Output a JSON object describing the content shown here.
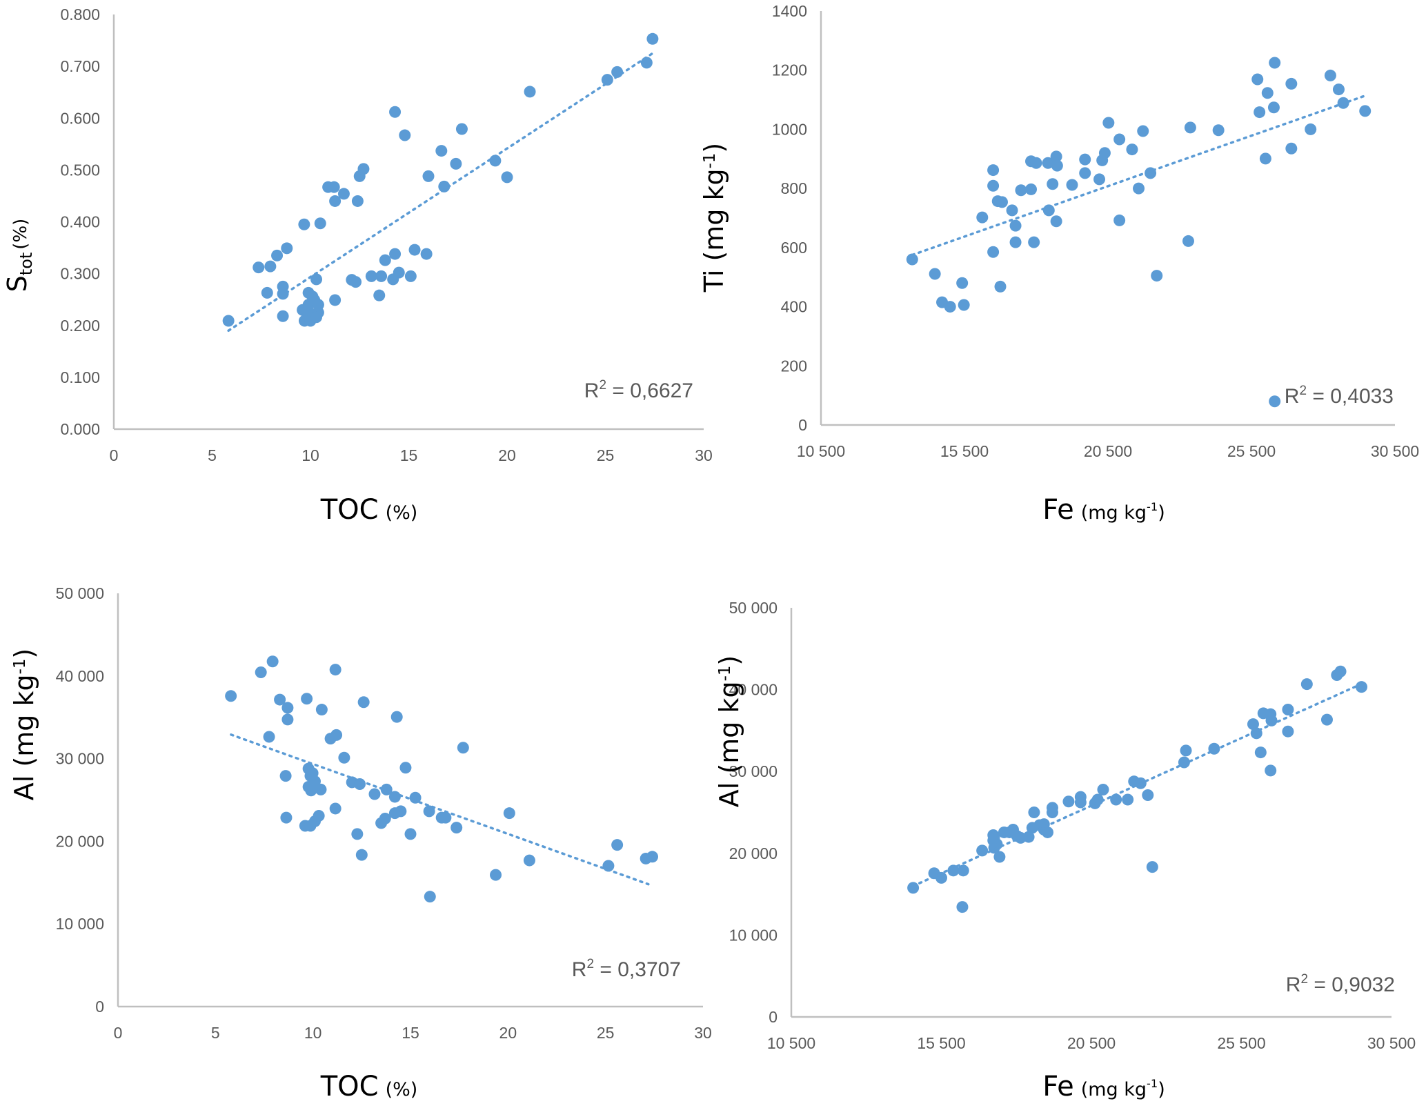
{
  "chart_data": [
    {
      "id": "toc-stot",
      "type": "scatter",
      "title": "",
      "xlabel": "TOC",
      "xlabel_unit": "(%)",
      "ylabel": "S",
      "ylabel_sub": "tot",
      "ylabel_unit": "(%)",
      "xlim": [
        0,
        30
      ],
      "ylim": [
        0,
        0.8
      ],
      "xticks": [
        0,
        5,
        10,
        15,
        20,
        25,
        30
      ],
      "xtick_labels": [
        "0",
        "5",
        "10",
        "15",
        "20",
        "25",
        "30"
      ],
      "yticks": [
        0,
        0.1,
        0.2,
        0.3,
        0.4,
        0.5,
        0.6,
        0.7,
        0.8
      ],
      "ytick_labels": [
        "0.000",
        "0.100",
        "0.200",
        "0.300",
        "0.400",
        "0.500",
        "0.600",
        "0.700",
        "0.800"
      ],
      "grid": false,
      "series": [
        {
          "name": "samples",
          "color": "#5b9bd5",
          "x": [
            5.83,
            7.36,
            7.96,
            7.8,
            8.3,
            8.8,
            8.6,
            8.6,
            8.6,
            9.68,
            10.5,
            10.3,
            9.6,
            9.9,
            10.1,
            9.9,
            9.95,
            10.4,
            10.4,
            9.7,
            10.0,
            10.3,
            10.2,
            11.25,
            10.9,
            11.2,
            11.7,
            11.25,
            12.4,
            12.5,
            12.7,
            12.1,
            12.3,
            13.1,
            13.6,
            13.5,
            13.8,
            14.2,
            14.3,
            14.5,
            15.1,
            15.3,
            15.9,
            14.3,
            14.8,
            16.0,
            16.66,
            16.8,
            17.4,
            17.7,
            19.4,
            20.0,
            21.16,
            25.1,
            25.6,
            27.1,
            27.4
          ],
          "y": [
            0.209,
            0.312,
            0.314,
            0.263,
            0.335,
            0.349,
            0.275,
            0.261,
            0.218,
            0.395,
            0.397,
            0.289,
            0.23,
            0.263,
            0.256,
            0.24,
            0.225,
            0.24,
            0.225,
            0.209,
            0.209,
            0.216,
            0.249,
            0.249,
            0.467,
            0.467,
            0.454,
            0.44,
            0.44,
            0.488,
            0.502,
            0.288,
            0.284,
            0.295,
            0.295,
            0.258,
            0.326,
            0.289,
            0.338,
            0.302,
            0.295,
            0.346,
            0.338,
            0.612,
            0.567,
            0.488,
            0.537,
            0.468,
            0.512,
            0.579,
            0.518,
            0.486,
            0.651,
            0.674,
            0.689,
            0.707,
            0.753
          ]
        }
      ],
      "trendline": {
        "type": "linear",
        "style": "dotted",
        "x": [
          5.83,
          27.4
        ],
        "y": [
          0.19,
          0.725
        ]
      },
      "annotation": {
        "label": "R",
        "sup": "2",
        "text": " = 0,6627",
        "value": 0.6627,
        "placement": "bottom-right"
      }
    },
    {
      "id": "fe-ti",
      "type": "scatter",
      "title": "",
      "xlabel": "Fe",
      "xlabel_unit": "(mg kg-1)",
      "ylabel": "Ti (mg kg-1)",
      "xlim": [
        10500,
        30500
      ],
      "ylim": [
        0,
        1400
      ],
      "xticks": [
        10500,
        15500,
        20500,
        25500,
        30500
      ],
      "xtick_labels": [
        "10 500",
        "15 500",
        "20 500",
        "25 500",
        "30 500"
      ],
      "yticks": [
        0,
        200,
        400,
        600,
        800,
        1000,
        1200,
        1400
      ],
      "ytick_labels": [
        "0",
        "200",
        "400",
        "600",
        "800",
        "1000",
        "1200",
        "1400"
      ],
      "grid": false,
      "series": [
        {
          "name": "samples",
          "color": "#5b9bd5",
          "x": [
            13680,
            14470,
            14720,
            15000,
            15480,
            15420,
            16120,
            16500,
            16500,
            16660,
            16810,
            16500,
            16750,
            17160,
            17280,
            17280,
            17470,
            17820,
            18000,
            17820,
            17920,
            18410,
            18700,
            18730,
            18570,
            18440,
            18700,
            19250,
            19700,
            19700,
            20200,
            20300,
            20390,
            20520,
            20900,
            20900,
            21340,
            21570,
            21720,
            21980,
            22200,
            23300,
            23370,
            24350,
            25710,
            25780,
            25990,
            26060,
            26310,
            26280,
            26310,
            26890,
            26890,
            27560,
            28250,
            28540,
            28700,
            29460
          ],
          "y": [
            560,
            511,
            415,
            400,
            406,
            480,
            702,
            862,
            809,
            757,
            754,
            585,
            468,
            726,
            674,
            618,
            794,
            892,
            886,
            797,
            618,
            886,
            908,
            877,
            815,
            726,
            689,
            812,
            898,
            852,
            831,
            895,
            920,
            1022,
            966,
            692,
            932,
            800,
            994,
            852,
            505,
            622,
            1006,
            997,
            1169,
            1058,
            901,
            1123,
            1225,
            1074,
            80,
            1154,
            935,
            1000,
            1182,
            1135,
            1089,
            1062
          ]
        }
      ],
      "trendline": {
        "type": "linear",
        "style": "dotted",
        "x": [
          13680,
          29500
        ],
        "y": [
          575,
          1115
        ]
      },
      "annotation": {
        "label": "R",
        "sup": "2",
        "text": " = 0,4033",
        "value": 0.4033,
        "placement": "bottom-right"
      }
    },
    {
      "id": "toc-al",
      "type": "scatter",
      "title": "",
      "xlabel": "TOC",
      "xlabel_unit": "(%)",
      "ylabel": "Al (mg kg-1)",
      "xlim": [
        0,
        30
      ],
      "ylim": [
        0,
        50000
      ],
      "xticks": [
        0,
        5,
        10,
        15,
        20,
        25,
        30
      ],
      "xtick_labels": [
        "0",
        "5",
        "10",
        "15",
        "20",
        "25",
        "30"
      ],
      "yticks": [
        0,
        10000,
        20000,
        30000,
        40000,
        50000
      ],
      "ytick_labels": [
        "0",
        "10 000",
        "20 000",
        "30 000",
        "40 000",
        "50 000"
      ],
      "grid": false,
      "series": [
        {
          "name": "samples",
          "color": "#5b9bd5",
          "x": [
            5.79,
            7.33,
            7.75,
            7.93,
            8.3,
            8.6,
            8.63,
            8.7,
            8.7,
            9.68,
            9.77,
            9.87,
            9.77,
            10.0,
            9.9,
            9.98,
            10.1,
            10.4,
            9.6,
            9.87,
            10.1,
            10.3,
            10.45,
            10.9,
            11.2,
            11.15,
            11.15,
            11.6,
            12.0,
            12.4,
            12.27,
            12.5,
            12.6,
            13.16,
            13.5,
            13.7,
            13.77,
            14.2,
            14.2,
            14.5,
            14.3,
            14.75,
            15.0,
            15.25,
            15.96,
            16.0,
            16.6,
            16.8,
            17.36,
            17.7,
            19.37,
            20.07,
            21.1,
            25.15,
            25.6,
            27.07,
            27.4
          ],
          "y": [
            37580,
            40440,
            32640,
            41760,
            37140,
            27910,
            22860,
            36150,
            34730,
            37250,
            28790,
            27910,
            26590,
            26920,
            26150,
            28240,
            27250,
            26260,
            21870,
            21870,
            22420,
            23080,
            35930,
            32420,
            32860,
            40770,
            23960,
            30110,
            27140,
            26920,
            20880,
            18350,
            36830,
            25710,
            22200,
            22750,
            26260,
            25380,
            23400,
            23630,
            35050,
            28900,
            20880,
            25270,
            23630,
            13300,
            22860,
            22860,
            21650,
            31320,
            15930,
            23400,
            17690,
            17030,
            19560,
            17910,
            18130
          ]
        }
      ],
      "trendline": {
        "type": "linear",
        "style": "dotted",
        "x": [
          5.8,
          27.2
        ],
        "y": [
          32900,
          14800
        ]
      },
      "annotation": {
        "label": "R",
        "sup": "2",
        "text": " = 0,3707",
        "value": 0.3707,
        "placement": "bottom-right"
      }
    },
    {
      "id": "fe-al",
      "type": "scatter",
      "title": "",
      "xlabel": "Fe",
      "xlabel_unit": "(mg kg-1)",
      "ylabel": "Al (mg kg-1)",
      "xlim": [
        10500,
        30500
      ],
      "ylim": [
        0,
        50000
      ],
      "xticks": [
        10500,
        15500,
        20500,
        25500,
        30500
      ],
      "xtick_labels": [
        "10 500",
        "15 500",
        "20 500",
        "25 500",
        "30 500"
      ],
      "yticks": [
        0,
        10000,
        20000,
        30000,
        40000,
        50000
      ],
      "ytick_labels": [
        "0",
        "10 000",
        "20 000",
        "30 000",
        "40 000",
        "50 000"
      ],
      "grid": false,
      "series": [
        {
          "name": "samples",
          "color": "#5b9bd5",
          "x": [
            14560,
            15260,
            15500,
            15900,
            16230,
            16200,
            16860,
            17230,
            17230,
            17260,
            17440,
            17350,
            17260,
            17590,
            17770,
            17890,
            18020,
            18140,
            18410,
            18590,
            18530,
            18770,
            18920,
            19040,
            18920,
            19200,
            19200,
            19740,
            20140,
            20140,
            20620,
            20710,
            20890,
            21320,
            21710,
            21920,
            22140,
            22380,
            22530,
            23590,
            23650,
            24590,
            25890,
            26000,
            26140,
            26230,
            26470,
            26500,
            26470,
            27050,
            27050,
            27680,
            28350,
            28680,
            28800,
            29500
          ],
          "y": [
            15780,
            17560,
            17000,
            17890,
            17890,
            13440,
            20330,
            22220,
            21560,
            20670,
            19560,
            21110,
            21890,
            22560,
            22560,
            22890,
            22110,
            21890,
            22000,
            25000,
            23110,
            23440,
            22890,
            22560,
            23560,
            25560,
            25000,
            26330,
            26890,
            26220,
            26110,
            26560,
            27780,
            26560,
            26560,
            28780,
            28560,
            27110,
            18330,
            31110,
            32560,
            32780,
            35780,
            34670,
            32330,
            37110,
            37000,
            36220,
            30110,
            37560,
            34890,
            40670,
            36330,
            41780,
            42220,
            40330
          ]
        }
      ],
      "trendline": {
        "type": "linear",
        "style": "dotted",
        "x": [
          14560,
          29500
        ],
        "y": [
          16000,
          40700
        ]
      },
      "annotation": {
        "label": "R",
        "sup": "2",
        "text": " = 0,9032",
        "value": 0.9032,
        "placement": "bottom-right"
      }
    }
  ]
}
